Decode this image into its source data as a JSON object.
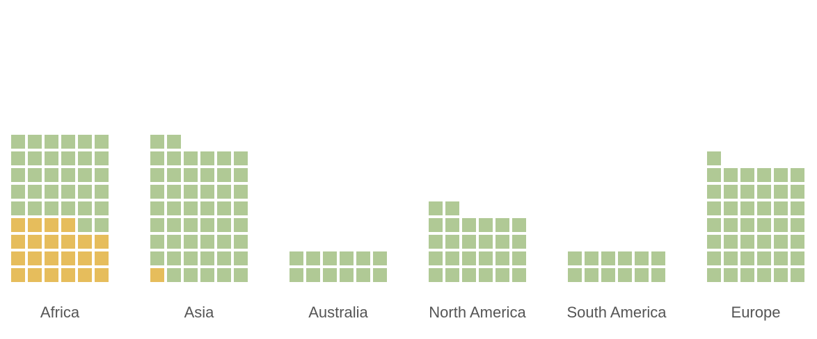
{
  "chart_data": {
    "type": "waffle",
    "title": "",
    "xlabel": "",
    "ylabel": "",
    "units_per_square": 1,
    "columns_per_group": 6,
    "colors": {
      "highlight": "#e6bd5c",
      "base": "#b0c995"
    },
    "categories": [
      "Africa",
      "Asia",
      "Australia",
      "North America",
      "South America",
      "Europe"
    ],
    "series": [
      {
        "values": [
          22,
          1,
          0,
          0,
          0,
          0
        ]
      },
      {
        "values": [
          32,
          49,
          12,
          26,
          12,
          43
        ]
      }
    ]
  }
}
